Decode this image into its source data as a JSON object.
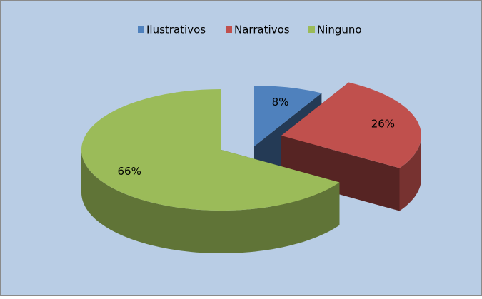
{
  "chart_data": {
    "type": "pie",
    "categories": [
      "Ilustrativos",
      "Narrativos",
      "Ninguno"
    ],
    "values": [
      8,
      26,
      66
    ],
    "value_labels": [
      "8%",
      "26%",
      "66%"
    ],
    "colors": [
      "#4f81bd",
      "#c0504d",
      "#9bbb59"
    ],
    "legend": "top"
  }
}
